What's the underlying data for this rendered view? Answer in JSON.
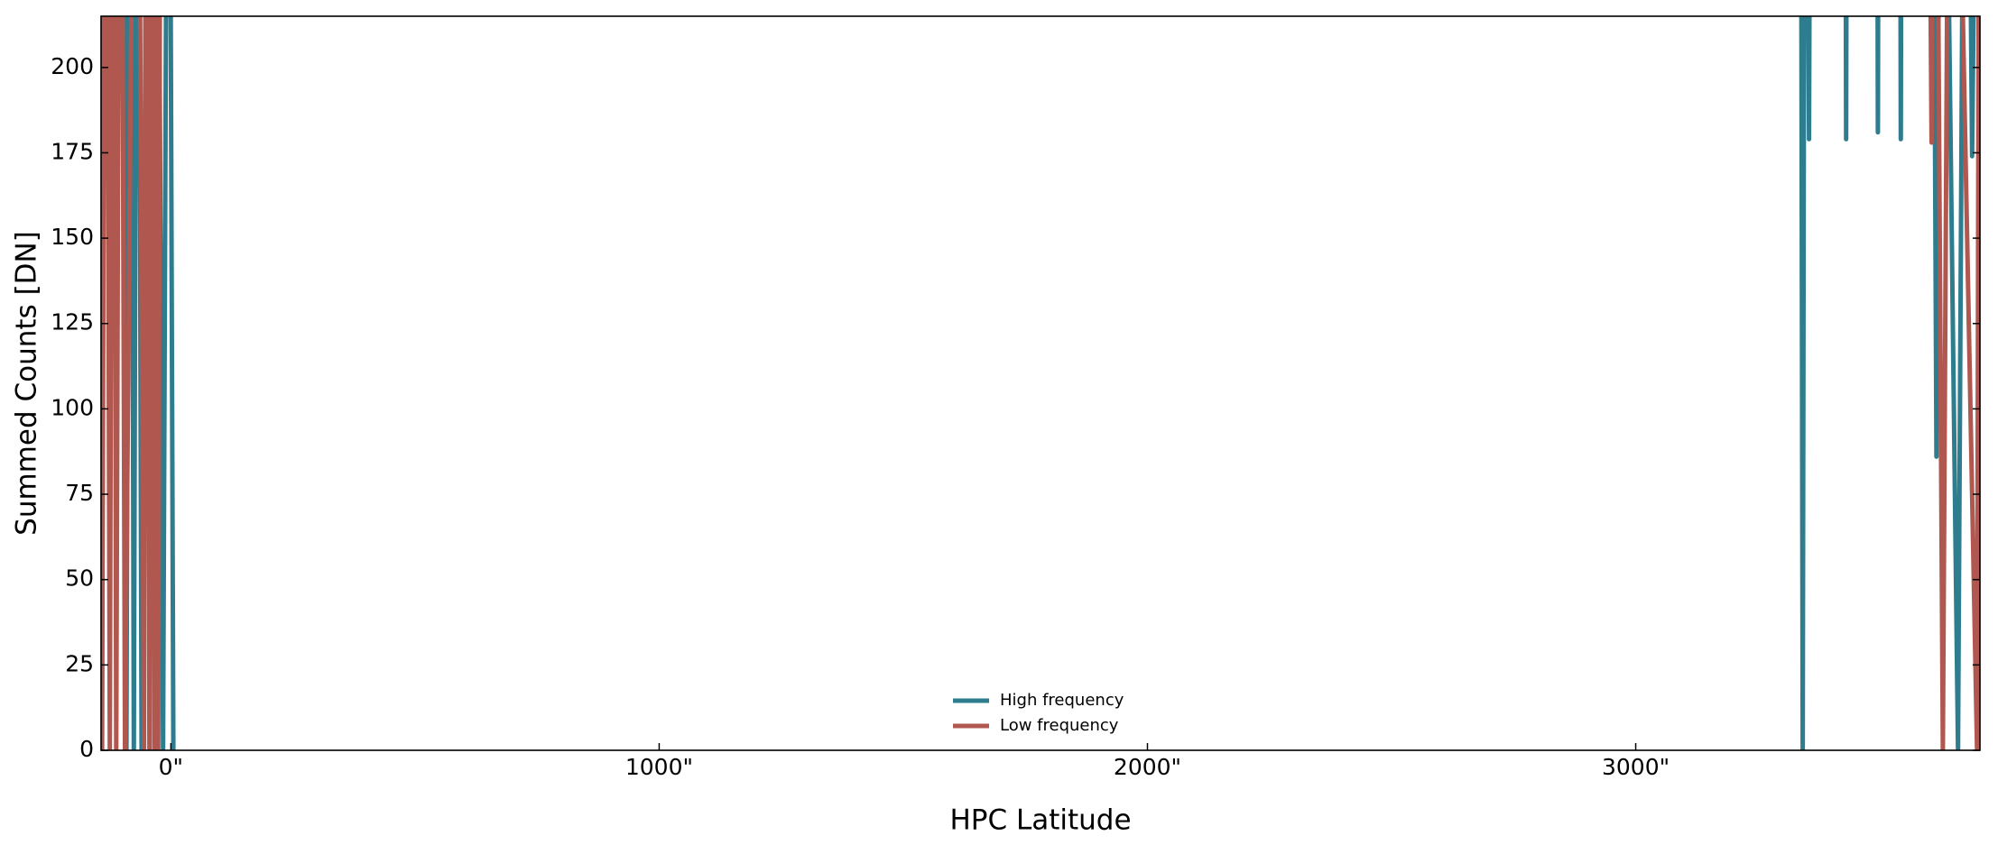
{
  "chart_data": {
    "type": "line",
    "x_label": "HPC Latitude",
    "y_label": "Summed Counts [DN]",
    "xlim": [
      -143,
      3705
    ],
    "ylim": [
      0,
      215
    ],
    "xticks": [
      {
        "value": 0,
        "label": "0\""
      },
      {
        "value": 1000,
        "label": "1000\""
      },
      {
        "value": 2000,
        "label": "2000\""
      },
      {
        "value": 3000,
        "label": "3000\""
      }
    ],
    "yticks": [
      0,
      25,
      50,
      75,
      100,
      125,
      150,
      175,
      200
    ],
    "legend": "lower center",
    "series": [
      {
        "name": "High frequency",
        "color": "#2e7d8f",
        "x": [
          -100,
          -91,
          -83,
          -76,
          -68,
          -60,
          -30,
          -16,
          -5,
          5,
          1000,
          3337,
          3342,
          3347,
          3355,
          3360,
          3428,
          3431,
          3434,
          3493,
          3496,
          3499,
          3540,
          3543,
          3546,
          3606,
          3616,
          3626,
          3660,
          3676,
          3689,
          3705
        ],
        "values": [
          400,
          0,
          400,
          0,
          400,
          0,
          400,
          0,
          400,
          0,
          null,
          400,
          0,
          400,
          179,
          400,
          400,
          179,
          400,
          400,
          181,
          400,
          400,
          179,
          400,
          400,
          86,
          400,
          0,
          400,
          174,
          400
        ]
      },
      {
        "name": "Low frequency",
        "color": "#b0584f",
        "x": [
          -143,
          -141,
          -133,
          -125,
          -118,
          -112,
          -103,
          -94,
          -70,
          -55,
          -50,
          -44,
          -39,
          -34,
          -30,
          -26,
          -20,
          1000,
          3595,
          3606,
          3612,
          3629,
          3645,
          3699,
          3705
        ],
        "values": [
          400,
          0,
          400,
          0,
          400,
          0,
          400,
          0,
          400,
          0,
          400,
          0,
          400,
          0,
          400,
          0,
          400,
          null,
          400,
          178,
          400,
          0,
          400,
          0,
          400
        ]
      }
    ]
  }
}
